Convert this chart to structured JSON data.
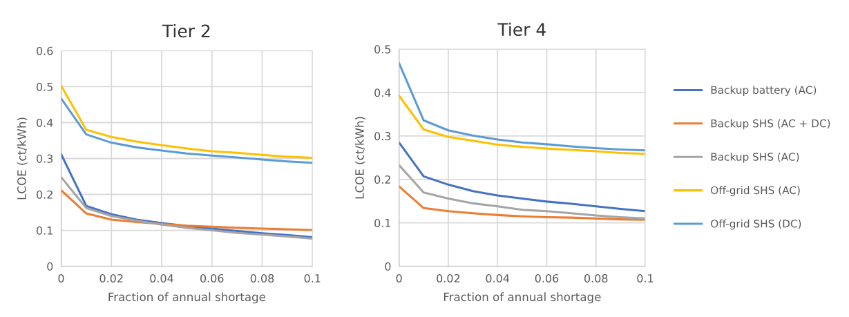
{
  "chart_data": [
    {
      "type": "line",
      "title": "Tier 2",
      "xlabel": "Fraction of annual shortage",
      "ylabel": "LCOE (ct/kWh)",
      "x": [
        0,
        0.01,
        0.02,
        0.03,
        0.04,
        0.05,
        0.06,
        0.07,
        0.08,
        0.09,
        0.1
      ],
      "xlim": [
        0,
        0.1
      ],
      "xticks": [
        0,
        0.02,
        0.04,
        0.06,
        0.08,
        0.1
      ],
      "ylim": [
        0,
        0.6
      ],
      "yticks": [
        0,
        0.1,
        0.2,
        0.3,
        0.4,
        0.5,
        0.6
      ],
      "grid": true,
      "legend": false,
      "series": [
        {
          "color": "#4472c4",
          "values": [
            0.312,
            0.168,
            0.145,
            0.13,
            0.12,
            0.112,
            0.105,
            0.098,
            0.092,
            0.087,
            0.081
          ]
        },
        {
          "color": "#ed7d31",
          "values": [
            0.212,
            0.147,
            0.13,
            0.123,
            0.118,
            0.113,
            0.11,
            0.107,
            0.105,
            0.103,
            0.101
          ]
        },
        {
          "color": "#a5a5a5",
          "values": [
            0.248,
            0.162,
            0.14,
            0.127,
            0.116,
            0.107,
            0.1,
            0.093,
            0.088,
            0.083,
            0.077
          ]
        },
        {
          "color": "#ffc000",
          "values": [
            0.503,
            0.38,
            0.36,
            0.347,
            0.337,
            0.328,
            0.32,
            0.316,
            0.31,
            0.305,
            0.302
          ]
        },
        {
          "color": "#5b9bd5",
          "values": [
            0.467,
            0.367,
            0.344,
            0.331,
            0.322,
            0.314,
            0.308,
            0.303,
            0.297,
            0.292,
            0.288
          ]
        }
      ]
    },
    {
      "type": "line",
      "title": "Tier 4",
      "xlabel": "Fraction of annual shortage",
      "ylabel": "LCOE (ct/kWh)",
      "x": [
        0,
        0.01,
        0.02,
        0.03,
        0.04,
        0.05,
        0.06,
        0.07,
        0.08,
        0.09,
        0.1
      ],
      "xlim": [
        0,
        0.1
      ],
      "xticks": [
        0,
        0.02,
        0.04,
        0.06,
        0.08,
        0.1
      ],
      "ylim": [
        0,
        0.5
      ],
      "yticks": [
        0,
        0.1,
        0.2,
        0.3,
        0.4,
        0.5
      ],
      "grid": true,
      "legend": "right",
      "series": [
        {
          "name": "Backup battery (AC)",
          "color": "#4472c4",
          "values": [
            0.285,
            0.207,
            0.188,
            0.173,
            0.163,
            0.156,
            0.149,
            0.144,
            0.138,
            0.132,
            0.127
          ]
        },
        {
          "name": "Backup SHS (AC + DC)",
          "color": "#ed7d31",
          "values": [
            0.184,
            0.134,
            0.127,
            0.122,
            0.118,
            0.115,
            0.113,
            0.112,
            0.11,
            0.108,
            0.107
          ]
        },
        {
          "name": "Backup SHS (AC)",
          "color": "#a5a5a5",
          "values": [
            0.233,
            0.17,
            0.156,
            0.145,
            0.138,
            0.13,
            0.127,
            0.122,
            0.117,
            0.113,
            0.11
          ]
        },
        {
          "name": "Off-grid SHS (AC)",
          "color": "#ffc000",
          "values": [
            0.393,
            0.315,
            0.298,
            0.289,
            0.28,
            0.275,
            0.271,
            0.268,
            0.265,
            0.261,
            0.259
          ]
        },
        {
          "name": "Off-grid SHS (DC)",
          "color": "#5b9bd5",
          "values": [
            0.468,
            0.336,
            0.313,
            0.301,
            0.292,
            0.285,
            0.281,
            0.276,
            0.272,
            0.269,
            0.267
          ]
        }
      ]
    }
  ]
}
